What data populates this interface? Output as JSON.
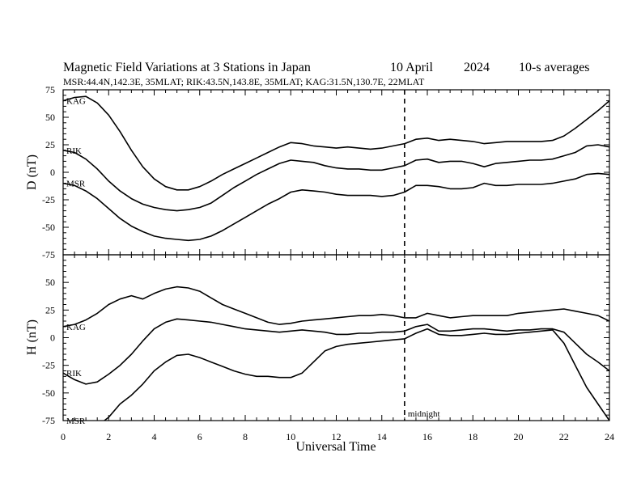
{
  "chart_data": [
    {
      "type": "line",
      "panel": "D",
      "title": "Magnetic Field Variations at 3 Stations in Japan",
      "date": "10 April",
      "year": "2024",
      "averaging": "10-s averages",
      "subtitle": "MSR:44.4N,142.3E, 35MLAT;  RIK:43.5N,143.8E, 35MLAT;  KAG:31.5N,130.7E, 22MLAT",
      "ylabel": "D (nT)",
      "xlabel": "",
      "xlim": [
        0,
        24
      ],
      "ylim": [
        -75,
        75
      ],
      "yticks": [
        "75",
        "50",
        "25",
        "0",
        "-25",
        "-50",
        "-75"
      ],
      "series": [
        {
          "name": "KAG",
          "x": [
            0,
            0.5,
            1,
            1.5,
            2,
            2.5,
            3,
            3.5,
            4,
            4.5,
            5,
            5.5,
            6,
            6.5,
            7,
            7.5,
            8,
            8.5,
            9,
            9.5,
            10,
            10.5,
            11,
            11.5,
            12,
            12.5,
            13,
            13.5,
            14,
            14.5,
            15,
            15.5,
            16,
            16.5,
            17,
            17.5,
            18,
            18.5,
            19,
            19.5,
            20,
            20.5,
            21,
            21.5,
            22,
            22.5,
            23,
            23.5,
            24
          ],
          "y": [
            65,
            68,
            69,
            63,
            52,
            37,
            20,
            5,
            -6,
            -13,
            -16,
            -16,
            -13,
            -8,
            -2,
            3,
            8,
            13,
            18,
            23,
            27,
            26,
            24,
            23,
            22,
            23,
            22,
            21,
            22,
            24,
            26,
            30,
            31,
            29,
            30,
            29,
            28,
            26,
            27,
            28,
            28,
            28,
            28,
            29,
            33,
            40,
            48,
            56,
            65
          ]
        },
        {
          "name": "RIK",
          "x": [
            0,
            0.5,
            1,
            1.5,
            2,
            2.5,
            3,
            3.5,
            4,
            4.5,
            5,
            5.5,
            6,
            6.5,
            7,
            7.5,
            8,
            8.5,
            9,
            9.5,
            10,
            10.5,
            11,
            11.5,
            12,
            12.5,
            13,
            13.5,
            14,
            14.5,
            15,
            15.5,
            16,
            16.5,
            17,
            17.5,
            18,
            18.5,
            19,
            19.5,
            20,
            20.5,
            21,
            21.5,
            22,
            22.5,
            23,
            23.5,
            24
          ],
          "y": [
            20,
            18,
            12,
            3,
            -8,
            -17,
            -24,
            -29,
            -32,
            -34,
            -35,
            -34,
            -32,
            -28,
            -21,
            -14,
            -8,
            -2,
            3,
            8,
            11,
            10,
            9,
            6,
            4,
            3,
            3,
            2,
            2,
            4,
            6,
            11,
            12,
            9,
            10,
            10,
            8,
            5,
            8,
            9,
            10,
            11,
            11,
            12,
            15,
            18,
            24,
            25,
            23
          ]
        },
        {
          "name": "MSR",
          "x": [
            0,
            0.5,
            1,
            1.5,
            2,
            2.5,
            3,
            3.5,
            4,
            4.5,
            5,
            5.5,
            6,
            6.5,
            7,
            7.5,
            8,
            8.5,
            9,
            9.5,
            10,
            10.5,
            11,
            11.5,
            12,
            12.5,
            13,
            13.5,
            14,
            14.5,
            15,
            15.5,
            16,
            16.5,
            17,
            17.5,
            18,
            18.5,
            19,
            19.5,
            20,
            20.5,
            21,
            21.5,
            22,
            22.5,
            23,
            23.5,
            24
          ],
          "y": [
            -10,
            -12,
            -17,
            -24,
            -33,
            -42,
            -49,
            -54,
            -58,
            -60,
            -61,
            -62,
            -61,
            -58,
            -53,
            -47,
            -41,
            -35,
            -29,
            -24,
            -18,
            -16,
            -17,
            -18,
            -20,
            -21,
            -21,
            -21,
            -22,
            -21,
            -18,
            -12,
            -12,
            -13,
            -15,
            -15,
            -14,
            -10,
            -12,
            -12,
            -11,
            -11,
            -11,
            -10,
            -8,
            -6,
            -2,
            -1,
            -2
          ]
        }
      ]
    },
    {
      "type": "line",
      "panel": "H",
      "ylabel": "H (nT)",
      "xlabel": "Universal Time",
      "xlim": [
        0,
        24
      ],
      "ylim": [
        -75,
        75
      ],
      "yticks": [
        "75",
        "50",
        "25",
        "0",
        "-25",
        "-50",
        "-75"
      ],
      "xticks": [
        "0",
        "2",
        "4",
        "6",
        "8",
        "10",
        "12",
        "14",
        "16",
        "18",
        "20",
        "22",
        "24"
      ],
      "annotation": "midnight",
      "midnight_ut": 15,
      "series": [
        {
          "name": "KAG",
          "x": [
            0,
            0.5,
            1,
            1.5,
            2,
            2.5,
            3,
            3.5,
            4,
            4.5,
            5,
            5.5,
            6,
            6.5,
            7,
            7.5,
            8,
            8.5,
            9,
            9.5,
            10,
            10.5,
            11,
            11.5,
            12,
            12.5,
            13,
            13.5,
            14,
            14.5,
            15,
            15.5,
            16,
            16.5,
            17,
            17.5,
            18,
            18.5,
            19,
            19.5,
            20,
            20.5,
            21,
            21.5,
            22,
            22.5,
            23,
            23.5,
            24
          ],
          "y": [
            10,
            12,
            16,
            22,
            30,
            35,
            38,
            35,
            40,
            44,
            46,
            45,
            42,
            36,
            30,
            26,
            22,
            18,
            14,
            12,
            13,
            15,
            16,
            17,
            18,
            19,
            20,
            20,
            21,
            20,
            18,
            18,
            22,
            20,
            18,
            19,
            20,
            20,
            20,
            20,
            22,
            23,
            24,
            25,
            26,
            24,
            22,
            20,
            15
          ]
        },
        {
          "name": "RIK",
          "x": [
            0,
            0.5,
            1,
            1.5,
            2,
            2.5,
            3,
            3.5,
            4,
            4.5,
            5,
            5.5,
            6,
            6.5,
            7,
            7.5,
            8,
            8.5,
            9,
            9.5,
            10,
            10.5,
            11,
            11.5,
            12,
            12.5,
            13,
            13.5,
            14,
            14.5,
            15,
            15.5,
            16,
            16.5,
            17,
            17.5,
            18,
            18.5,
            19,
            19.5,
            20,
            20.5,
            21,
            21.5,
            22,
            22.5,
            23,
            23.5,
            24
          ],
          "y": [
            -32,
            -38,
            -42,
            -40,
            -33,
            -25,
            -15,
            -3,
            8,
            14,
            17,
            16,
            15,
            14,
            12,
            10,
            8,
            7,
            6,
            5,
            6,
            7,
            6,
            5,
            3,
            3,
            4,
            4,
            5,
            5,
            6,
            10,
            12,
            6,
            6,
            7,
            8,
            8,
            7,
            6,
            7,
            7,
            8,
            8,
            5,
            -5,
            -15,
            -22,
            -30
          ]
        },
        {
          "name": "MSR",
          "x": [
            0,
            0.5,
            1,
            1.5,
            2,
            2.5,
            3,
            3.5,
            4,
            4.5,
            5,
            5.5,
            6,
            6.5,
            7,
            7.5,
            8,
            8.5,
            9,
            9.5,
            10,
            10.5,
            11,
            11.5,
            12,
            12.5,
            13,
            13.5,
            14,
            14.5,
            15,
            15.5,
            16,
            16.5,
            17,
            17.5,
            18,
            18.5,
            19,
            19.5,
            20,
            20.5,
            21,
            21.5,
            22,
            22.5,
            23,
            23.5,
            24
          ],
          "y": [
            -75,
            -80,
            -84,
            -80,
            -72,
            -60,
            -52,
            -42,
            -30,
            -22,
            -16,
            -15,
            -18,
            -22,
            -26,
            -30,
            -33,
            -35,
            -35,
            -36,
            -36,
            -32,
            -22,
            -12,
            -8,
            -6,
            -5,
            -4,
            -3,
            -2,
            -1,
            4,
            8,
            3,
            2,
            2,
            3,
            4,
            3,
            3,
            4,
            5,
            6,
            7,
            -5,
            -25,
            -45,
            -60,
            -75
          ]
        }
      ]
    }
  ]
}
